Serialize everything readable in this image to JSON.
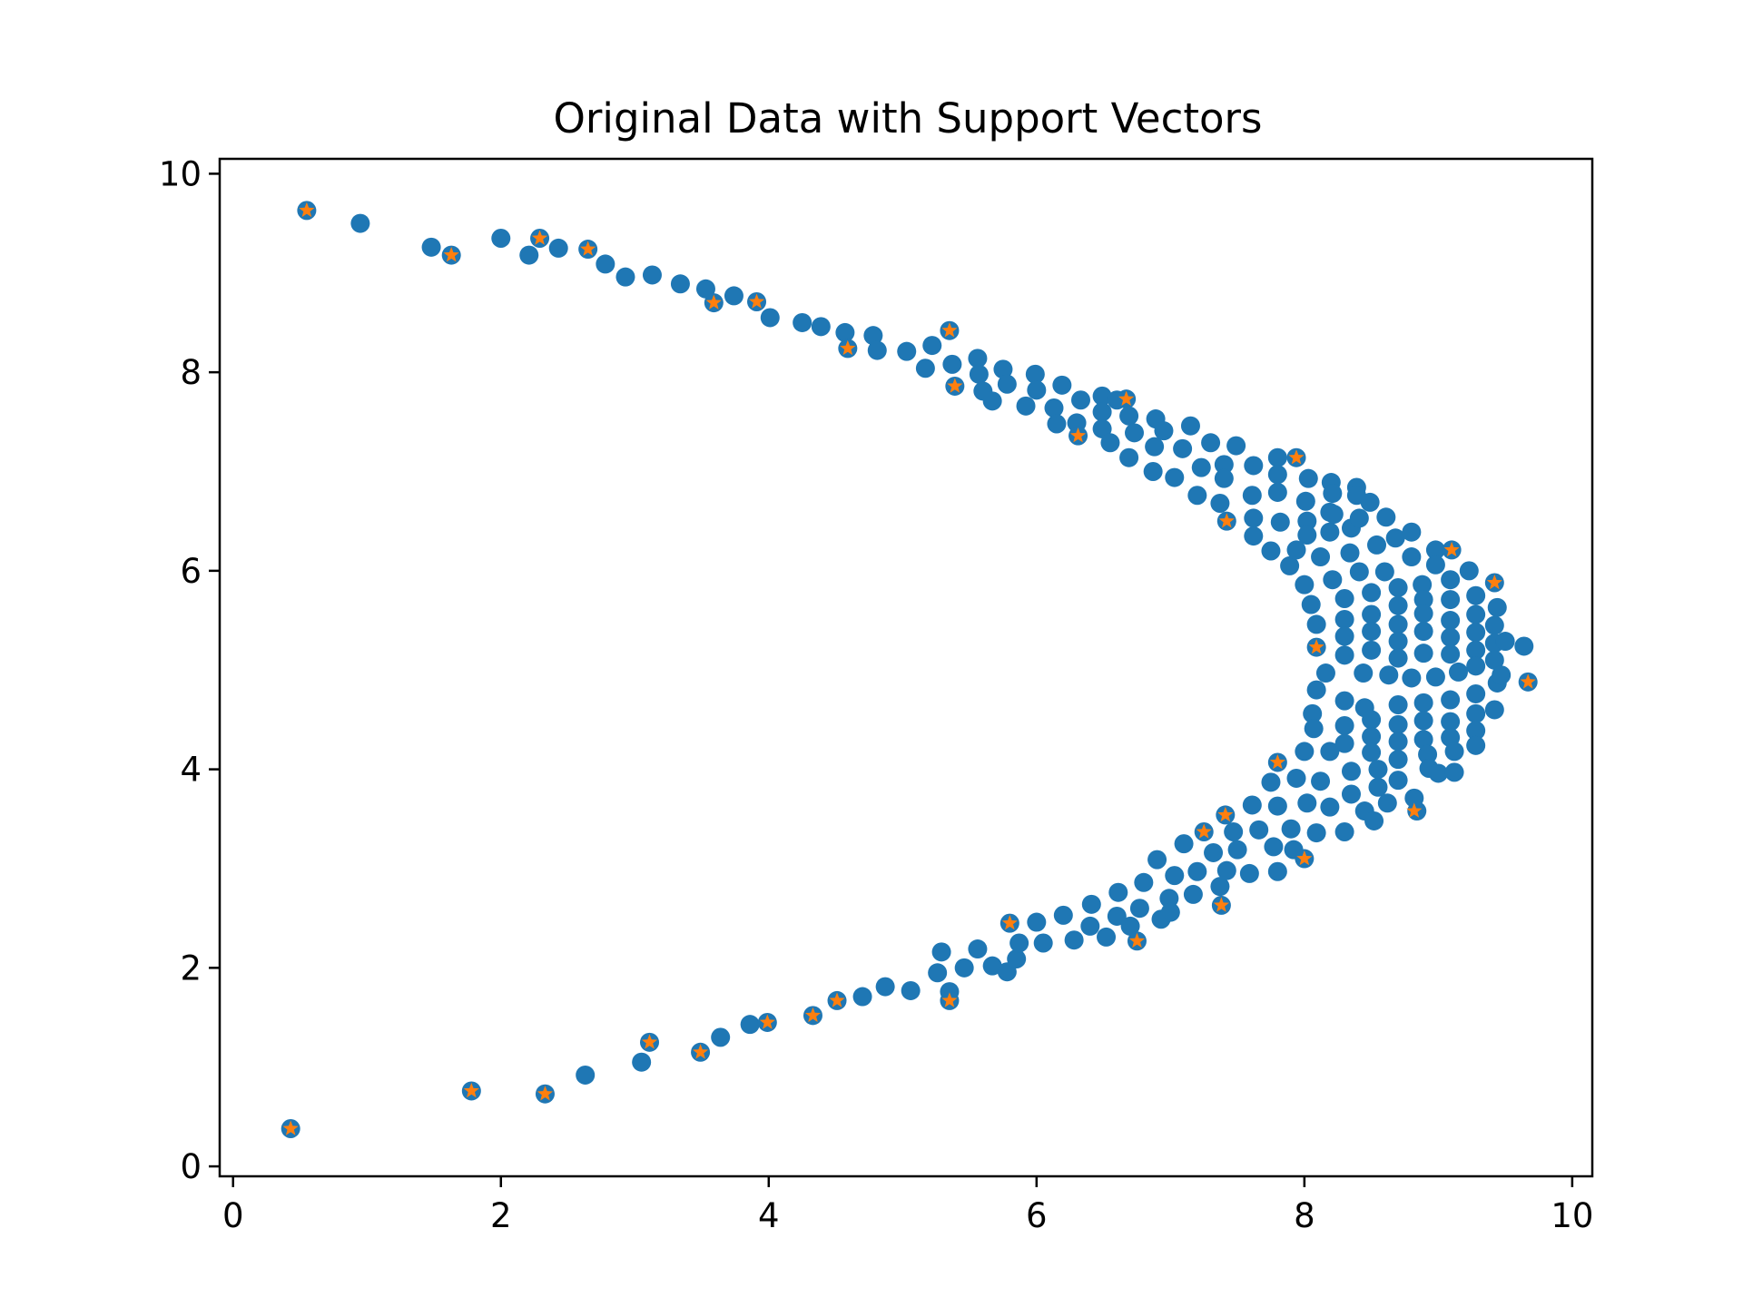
{
  "chart_data": {
    "type": "scatter",
    "title": "Original Data with Support Vectors",
    "xlabel": "",
    "ylabel": "",
    "xlim": [
      -0.1,
      10.15
    ],
    "ylim": [
      -0.1,
      10.15
    ],
    "xticks": [
      "0",
      "2",
      "4",
      "6",
      "8",
      "10"
    ],
    "yticks": [
      "0",
      "2",
      "4",
      "6",
      "8",
      "10"
    ],
    "grid": false,
    "legend": "none",
    "colors": {
      "data": "#1f77b4",
      "support_vectors": "#ff7f0e"
    },
    "series": [
      {
        "marker": "circle",
        "color": "#1f77b4",
        "points": [
          [
            0.43,
            0.38
          ],
          [
            0.55,
            9.63
          ],
          [
            0.95,
            9.5
          ],
          [
            1.48,
            9.26
          ],
          [
            1.63,
            9.18
          ],
          [
            1.78,
            0.76
          ],
          [
            2.0,
            9.35
          ],
          [
            2.21,
            9.18
          ],
          [
            2.29,
            9.35
          ],
          [
            2.33,
            0.73
          ],
          [
            2.43,
            9.25
          ],
          [
            2.63,
            0.92
          ],
          [
            2.65,
            9.24
          ],
          [
            2.78,
            9.09
          ],
          [
            2.93,
            8.96
          ],
          [
            3.05,
            1.05
          ],
          [
            3.11,
            1.25
          ],
          [
            3.13,
            8.98
          ],
          [
            3.34,
            8.89
          ],
          [
            3.49,
            1.15
          ],
          [
            3.53,
            8.84
          ],
          [
            3.59,
            8.7
          ],
          [
            3.64,
            1.3
          ],
          [
            3.74,
            8.77
          ],
          [
            3.86,
            1.43
          ],
          [
            3.91,
            8.71
          ],
          [
            3.99,
            1.45
          ],
          [
            4.01,
            8.55
          ],
          [
            4.25,
            8.5
          ],
          [
            4.33,
            1.52
          ],
          [
            4.39,
            8.46
          ],
          [
            4.51,
            1.67
          ],
          [
            4.57,
            8.4
          ],
          [
            4.59,
            8.24
          ],
          [
            4.7,
            1.71
          ],
          [
            4.78,
            8.37
          ],
          [
            4.81,
            8.22
          ],
          [
            4.87,
            1.81
          ],
          [
            5.03,
            8.21
          ],
          [
            5.06,
            1.77
          ],
          [
            5.17,
            8.04
          ],
          [
            5.22,
            8.27
          ],
          [
            5.26,
            1.95
          ],
          [
            5.29,
            2.16
          ],
          [
            5.35,
            8.42
          ],
          [
            5.35,
            1.76
          ],
          [
            5.35,
            1.67
          ],
          [
            5.37,
            8.08
          ],
          [
            5.39,
            7.86
          ],
          [
            5.46,
            2.0
          ],
          [
            5.56,
            8.14
          ],
          [
            5.56,
            2.19
          ],
          [
            5.57,
            7.98
          ],
          [
            5.6,
            7.81
          ],
          [
            5.67,
            7.71
          ],
          [
            5.67,
            2.02
          ],
          [
            5.75,
            8.03
          ],
          [
            5.78,
            7.88
          ],
          [
            5.78,
            1.96
          ],
          [
            5.8,
            2.45
          ],
          [
            5.85,
            2.09
          ],
          [
            5.87,
            2.25
          ],
          [
            5.92,
            7.66
          ],
          [
            5.99,
            7.98
          ],
          [
            6.0,
            7.82
          ],
          [
            6.0,
            2.46
          ],
          [
            6.05,
            2.25
          ],
          [
            6.13,
            7.64
          ],
          [
            6.15,
            7.48
          ],
          [
            6.19,
            7.87
          ],
          [
            6.2,
            2.53
          ],
          [
            6.28,
            2.28
          ],
          [
            6.3,
            7.49
          ],
          [
            6.31,
            7.36
          ],
          [
            6.33,
            7.72
          ],
          [
            6.4,
            2.42
          ],
          [
            6.41,
            2.64
          ],
          [
            6.49,
            7.76
          ],
          [
            6.49,
            7.6
          ],
          [
            6.49,
            7.43
          ],
          [
            6.52,
            2.31
          ],
          [
            6.55,
            7.29
          ],
          [
            6.6,
            7.72
          ],
          [
            6.6,
            2.52
          ],
          [
            6.61,
            2.76
          ],
          [
            6.67,
            7.73
          ],
          [
            6.69,
            7.56
          ],
          [
            6.69,
            7.14
          ],
          [
            6.7,
            2.42
          ],
          [
            6.73,
            7.39
          ],
          [
            6.75,
            2.27
          ],
          [
            6.77,
            2.6
          ],
          [
            6.8,
            2.86
          ],
          [
            6.87,
            7.0
          ],
          [
            6.88,
            7.25
          ],
          [
            6.89,
            7.53
          ],
          [
            6.9,
            3.09
          ],
          [
            6.93,
            2.49
          ],
          [
            6.95,
            7.41
          ],
          [
            6.99,
            2.7
          ],
          [
            7.0,
            2.56
          ],
          [
            7.03,
            6.94
          ],
          [
            7.03,
            2.93
          ],
          [
            7.09,
            7.23
          ],
          [
            7.1,
            3.25
          ],
          [
            7.15,
            7.46
          ],
          [
            7.17,
            2.74
          ],
          [
            7.2,
            6.76
          ],
          [
            7.2,
            2.97
          ],
          [
            7.23,
            7.04
          ],
          [
            7.25,
            3.37
          ],
          [
            7.3,
            7.29
          ],
          [
            7.32,
            3.16
          ],
          [
            7.37,
            6.68
          ],
          [
            7.37,
            2.82
          ],
          [
            7.38,
            2.63
          ],
          [
            7.4,
            7.07
          ],
          [
            7.4,
            6.93
          ],
          [
            7.41,
            3.54
          ],
          [
            7.42,
            6.5
          ],
          [
            7.42,
            2.98
          ],
          [
            7.47,
            3.37
          ],
          [
            7.49,
            7.26
          ],
          [
            7.5,
            3.19
          ],
          [
            7.59,
            2.95
          ],
          [
            7.61,
            6.76
          ],
          [
            7.61,
            3.64
          ],
          [
            7.62,
            7.06
          ],
          [
            7.62,
            6.53
          ],
          [
            7.62,
            6.35
          ],
          [
            7.66,
            3.39
          ],
          [
            7.75,
            6.2
          ],
          [
            7.75,
            3.87
          ],
          [
            7.77,
            3.22
          ],
          [
            7.8,
            7.14
          ],
          [
            7.8,
            6.97
          ],
          [
            7.8,
            6.79
          ],
          [
            7.8,
            4.07
          ],
          [
            7.8,
            3.63
          ],
          [
            7.8,
            2.97
          ],
          [
            7.82,
            6.49
          ],
          [
            7.89,
            6.05
          ],
          [
            7.9,
            3.4
          ],
          [
            7.92,
            3.19
          ],
          [
            7.94,
            7.14
          ],
          [
            7.94,
            6.21
          ],
          [
            7.94,
            3.91
          ],
          [
            8.0,
            5.86
          ],
          [
            8.0,
            4.18
          ],
          [
            8.0,
            3.1
          ],
          [
            8.01,
            6.7
          ],
          [
            8.02,
            6.5
          ],
          [
            8.02,
            6.36
          ],
          [
            8.03,
            6.93
          ],
          [
            8.02,
            3.66
          ],
          [
            8.05,
            5.66
          ],
          [
            8.06,
            4.56
          ],
          [
            8.07,
            4.41
          ],
          [
            8.09,
            5.46
          ],
          [
            8.09,
            5.23
          ],
          [
            8.09,
            4.8
          ],
          [
            8.09,
            3.36
          ],
          [
            8.12,
            6.14
          ],
          [
            8.12,
            3.88
          ],
          [
            8.16,
            4.97
          ],
          [
            8.19,
            6.59
          ],
          [
            8.19,
            6.39
          ],
          [
            8.19,
            4.18
          ],
          [
            8.19,
            3.62
          ],
          [
            8.2,
            6.89
          ],
          [
            8.21,
            6.78
          ],
          [
            8.21,
            5.91
          ],
          [
            8.22,
            6.57
          ],
          [
            8.3,
            5.72
          ],
          [
            8.3,
            5.51
          ],
          [
            8.3,
            5.34
          ],
          [
            8.3,
            5.15
          ],
          [
            8.3,
            4.69
          ],
          [
            8.3,
            4.44
          ],
          [
            8.3,
            4.26
          ],
          [
            8.3,
            3.37
          ],
          [
            8.34,
            6.18
          ],
          [
            8.35,
            6.43
          ],
          [
            8.35,
            3.98
          ],
          [
            8.35,
            3.75
          ],
          [
            8.39,
            6.84
          ],
          [
            8.39,
            6.76
          ],
          [
            8.41,
            6.53
          ],
          [
            8.41,
            5.99
          ],
          [
            8.44,
            4.97
          ],
          [
            8.45,
            4.62
          ],
          [
            8.45,
            3.58
          ],
          [
            8.49,
            6.69
          ],
          [
            8.5,
            5.78
          ],
          [
            8.5,
            5.56
          ],
          [
            8.5,
            5.39
          ],
          [
            8.5,
            5.2
          ],
          [
            8.5,
            4.5
          ],
          [
            8.5,
            4.33
          ],
          [
            8.5,
            4.17
          ],
          [
            8.52,
            3.48
          ],
          [
            8.54,
            6.26
          ],
          [
            8.55,
            3.82
          ],
          [
            8.55,
            4.0
          ],
          [
            8.6,
            5.99
          ],
          [
            8.61,
            6.54
          ],
          [
            8.62,
            3.66
          ],
          [
            8.63,
            4.95
          ],
          [
            8.68,
            6.33
          ],
          [
            8.7,
            5.83
          ],
          [
            8.7,
            5.65
          ],
          [
            8.7,
            5.46
          ],
          [
            8.7,
            5.29
          ],
          [
            8.7,
            5.12
          ],
          [
            8.7,
            4.65
          ],
          [
            8.7,
            4.45
          ],
          [
            8.7,
            4.28
          ],
          [
            8.7,
            4.1
          ],
          [
            8.7,
            3.89
          ],
          [
            8.8,
            6.39
          ],
          [
            8.8,
            6.14
          ],
          [
            8.8,
            4.92
          ],
          [
            8.82,
            3.71
          ],
          [
            8.84,
            3.58
          ],
          [
            8.88,
            5.86
          ],
          [
            8.89,
            5.71
          ],
          [
            8.89,
            5.57
          ],
          [
            8.89,
            5.39
          ],
          [
            8.89,
            5.17
          ],
          [
            8.89,
            4.67
          ],
          [
            8.89,
            4.49
          ],
          [
            8.89,
            4.3
          ],
          [
            8.92,
            4.15
          ],
          [
            8.93,
            4.01
          ],
          [
            8.98,
            6.21
          ],
          [
            8.98,
            6.06
          ],
          [
            8.98,
            4.93
          ],
          [
            9.0,
            3.96
          ],
          [
            9.09,
            5.91
          ],
          [
            9.09,
            5.71
          ],
          [
            9.09,
            5.5
          ],
          [
            9.09,
            5.33
          ],
          [
            9.09,
            5.16
          ],
          [
            9.09,
            4.7
          ],
          [
            9.09,
            4.48
          ],
          [
            9.09,
            4.32
          ],
          [
            9.1,
            6.21
          ],
          [
            9.12,
            4.18
          ],
          [
            9.12,
            3.97
          ],
          [
            9.15,
            4.98
          ],
          [
            9.23,
            6.0
          ],
          [
            9.28,
            5.75
          ],
          [
            9.28,
            5.56
          ],
          [
            9.28,
            5.38
          ],
          [
            9.28,
            5.2
          ],
          [
            9.28,
            5.04
          ],
          [
            9.28,
            4.76
          ],
          [
            9.28,
            4.56
          ],
          [
            9.28,
            4.39
          ],
          [
            9.28,
            4.24
          ],
          [
            9.42,
            5.88
          ],
          [
            9.42,
            5.45
          ],
          [
            9.42,
            5.27
          ],
          [
            9.42,
            5.1
          ],
          [
            9.42,
            4.6
          ],
          [
            9.44,
            5.63
          ],
          [
            9.44,
            4.87
          ],
          [
            9.47,
            4.95
          ],
          [
            9.5,
            5.29
          ],
          [
            9.64,
            5.24
          ],
          [
            9.67,
            4.88
          ]
        ]
      },
      {
        "marker": "star",
        "color": "#ff7f0e",
        "points": [
          [
            0.43,
            0.38
          ],
          [
            0.55,
            9.63
          ],
          [
            1.63,
            9.18
          ],
          [
            1.78,
            0.76
          ],
          [
            2.29,
            9.35
          ],
          [
            2.33,
            0.73
          ],
          [
            2.65,
            9.24
          ],
          [
            3.11,
            1.25
          ],
          [
            3.49,
            1.15
          ],
          [
            3.59,
            8.7
          ],
          [
            3.91,
            8.71
          ],
          [
            3.99,
            1.45
          ],
          [
            4.33,
            1.52
          ],
          [
            4.51,
            1.67
          ],
          [
            4.59,
            8.24
          ],
          [
            5.35,
            8.42
          ],
          [
            5.35,
            1.67
          ],
          [
            5.39,
            7.86
          ],
          [
            5.8,
            2.45
          ],
          [
            6.31,
            7.36
          ],
          [
            6.67,
            7.73
          ],
          [
            6.75,
            2.27
          ],
          [
            7.25,
            3.37
          ],
          [
            7.38,
            2.63
          ],
          [
            7.41,
            3.54
          ],
          [
            7.42,
            6.5
          ],
          [
            7.8,
            4.07
          ],
          [
            7.94,
            7.14
          ],
          [
            8.0,
            3.1
          ],
          [
            8.09,
            5.23
          ],
          [
            8.82,
            3.58
          ],
          [
            9.1,
            6.21
          ],
          [
            9.42,
            5.88
          ],
          [
            9.67,
            4.88
          ]
        ]
      }
    ]
  }
}
